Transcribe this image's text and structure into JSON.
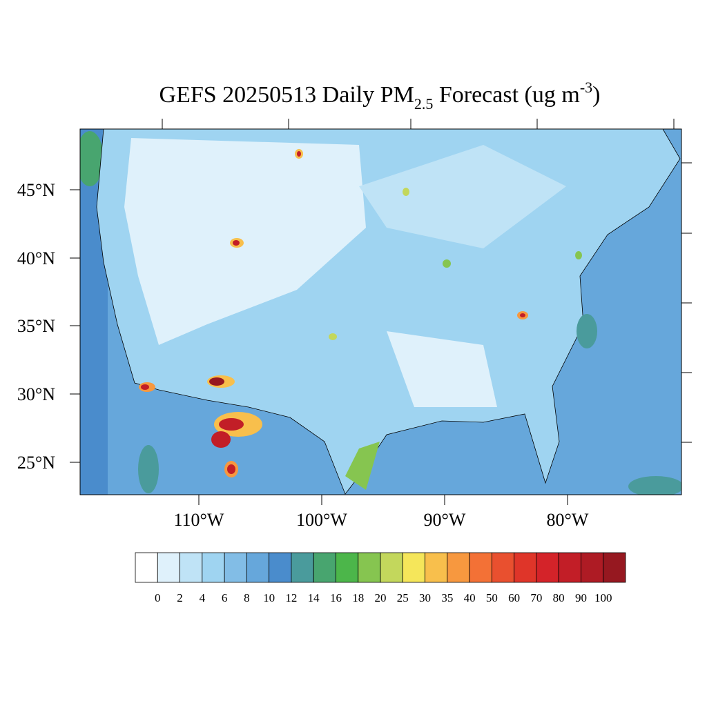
{
  "title": {
    "prefix": "GEFS 20250513 Daily PM",
    "subscript": "2.5",
    "middle": " Forecast (ug m",
    "superscript": "-3",
    "suffix": ")"
  },
  "map": {
    "lat_labels": [
      "45°N",
      "40°N",
      "35°N",
      "30°N",
      "25°N"
    ],
    "lon_labels": [
      "110°W",
      "100°W",
      "90°W",
      "80°W"
    ]
  },
  "colorbar": {
    "levels": [
      0,
      2,
      4,
      6,
      8,
      10,
      12,
      14,
      16,
      18,
      20,
      25,
      30,
      35,
      40,
      50,
      60,
      70,
      80,
      90,
      100
    ],
    "colors": [
      "#ffffff",
      "#dff1fb",
      "#bfe3f6",
      "#9fd4f1",
      "#82bde6",
      "#66a7db",
      "#4a8ccc",
      "#4a9b9c",
      "#48a56f",
      "#4cb64a",
      "#86c550",
      "#c3d75c",
      "#f5e65a",
      "#f8bf4c",
      "#f7983f",
      "#f37136",
      "#e9502f",
      "#df3529",
      "#d42329",
      "#c21e27",
      "#ae1b24",
      "#961820"
    ]
  }
}
